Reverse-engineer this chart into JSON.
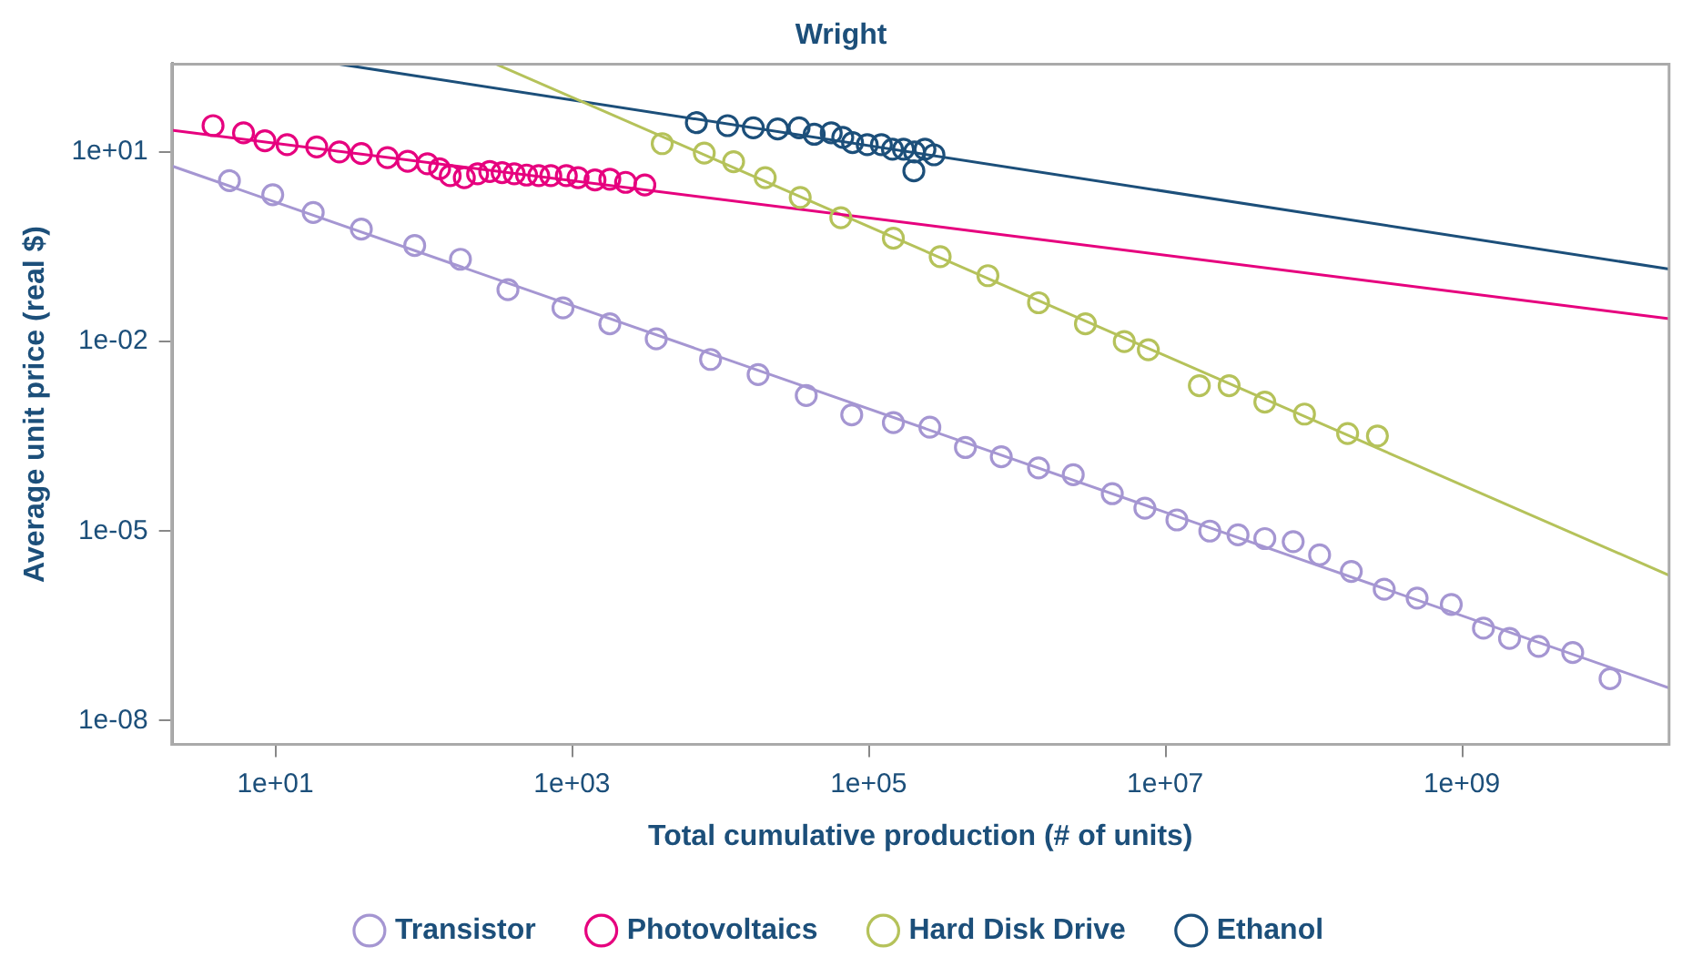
{
  "chart_data": {
    "type": "scatter",
    "title": "Wright",
    "xlabel": "Total cumulative production (# of units)",
    "ylabel": "Average unit price (real $)",
    "log": "xy",
    "grid": false,
    "legend": "bottom",
    "marker": "circle",
    "xlim": [
      2.0,
      25000000000.0
    ],
    "ylim": [
      4.2e-09,
      245
    ],
    "xticks": [
      {
        "value": 10,
        "label": "1e+01"
      },
      {
        "value": 1000,
        "label": "1e+03"
      },
      {
        "value": 100000,
        "label": "1e+05"
      },
      {
        "value": 10000000,
        "label": "1e+07"
      },
      {
        "value": 1000000000,
        "label": "1e+09"
      }
    ],
    "yticks": [
      {
        "value": 1e-08,
        "label": "1e-08"
      },
      {
        "value": 1e-05,
        "label": "1e-05"
      },
      {
        "value": 0.01,
        "label": "1e-02"
      },
      {
        "value": 10,
        "label": "1e+01"
      }
    ],
    "series": [
      {
        "name": "Transistor",
        "color": "#a596d2",
        "x": [
          4.9,
          9.6,
          18,
          38,
          87,
          177,
          370,
          870,
          1800,
          3700,
          8600,
          18000,
          38000,
          77000,
          147000,
          259000,
          450000,
          785000,
          1400000,
          2400000,
          4400000,
          7300000,
          12000000,
          20000000,
          31000000,
          47000000,
          73000000,
          110000000,
          180000000,
          300000000,
          500000000,
          850000000,
          1400000000,
          2100000000,
          3300000000,
          5600000000,
          10000000000
        ],
        "values": [
          3.5,
          2.1,
          1.1,
          0.6,
          0.33,
          0.2,
          0.066,
          0.034,
          0.019,
          0.011,
          0.0052,
          0.003,
          0.0014,
          0.00069,
          0.00052,
          0.00044,
          0.00021,
          0.00015,
          0.0001,
          7.8e-05,
          3.9e-05,
          2.3e-05,
          1.5e-05,
          1e-05,
          8.7e-06,
          7.6e-06,
          6.8e-06,
          4.2e-06,
          2.3e-06,
          1.2e-06,
          8.7e-07,
          6.9e-07,
          2.9e-07,
          2e-07,
          1.5e-07,
          1.2e-07,
          4.6e-08
        ]
      },
      {
        "name": "Photovoltaics",
        "color": "#e6007e",
        "x": [
          3.8,
          6.1,
          8.5,
          12,
          19,
          27,
          38,
          57,
          78,
          106,
          128,
          151,
          188,
          231,
          279,
          338,
          408,
          494,
          597,
          720,
          916,
          1100,
          1430,
          1800,
          2300,
          3100
        ],
        "values": [
          26,
          20,
          15,
          13,
          12,
          10,
          9.4,
          8.1,
          7.1,
          6.5,
          5.4,
          4.2,
          3.9,
          4.5,
          4.9,
          4.7,
          4.5,
          4.3,
          4.2,
          4.2,
          4.2,
          3.9,
          3.6,
          3.7,
          3.3,
          3.0
        ]
      },
      {
        "name": "Hard Disk Drive",
        "color": "#b5c25a",
        "x": [
          4060,
          7800,
          12300,
          20100,
          34600,
          65000,
          147000,
          304000,
          638000,
          1400000,
          2900000,
          5300000,
          7700000,
          17000000,
          27000000,
          47000000,
          87000000,
          170000000,
          270000000
        ],
        "values": [
          13.5,
          9.6,
          7.0,
          3.9,
          1.9,
          0.91,
          0.43,
          0.22,
          0.11,
          0.041,
          0.019,
          0.01,
          0.0074,
          0.002,
          0.002,
          0.0011,
          0.00071,
          0.00035,
          0.00032
        ]
      },
      {
        "name": "Ethanol",
        "color": "#1c4f7a",
        "x": [
          6900,
          11200,
          16700,
          24400,
          34000,
          43000,
          56000,
          67000,
          78000,
          98000,
          122000,
          145000,
          172000,
          204000,
          240000,
          276000,
          202000
        ],
        "values": [
          29,
          26,
          24,
          23,
          24,
          19,
          20,
          17,
          14,
          13,
          13,
          11,
          11,
          10,
          11,
          9.0,
          5.0
        ]
      },
      {
        "type": "line",
        "marker": "none",
        "color": "#a596d2",
        "x": [
          2.0,
          25000000000.0
        ],
        "values": [
          6.0,
          3.3e-08
        ]
      },
      {
        "type": "line",
        "marker": "none",
        "color": "#e6007e",
        "x": [
          2.0,
          25000000000.0
        ],
        "values": [
          22,
          0.023
        ]
      },
      {
        "type": "line",
        "marker": "none",
        "color": "#b5c25a",
        "x": [
          307,
          25000000000.0
        ],
        "values": [
          245,
          2e-06
        ]
      },
      {
        "type": "line",
        "marker": "none",
        "color": "#1c4f7a",
        "x": [
          27,
          25000000000.0
        ],
        "values": [
          245,
          0.14
        ]
      }
    ]
  }
}
